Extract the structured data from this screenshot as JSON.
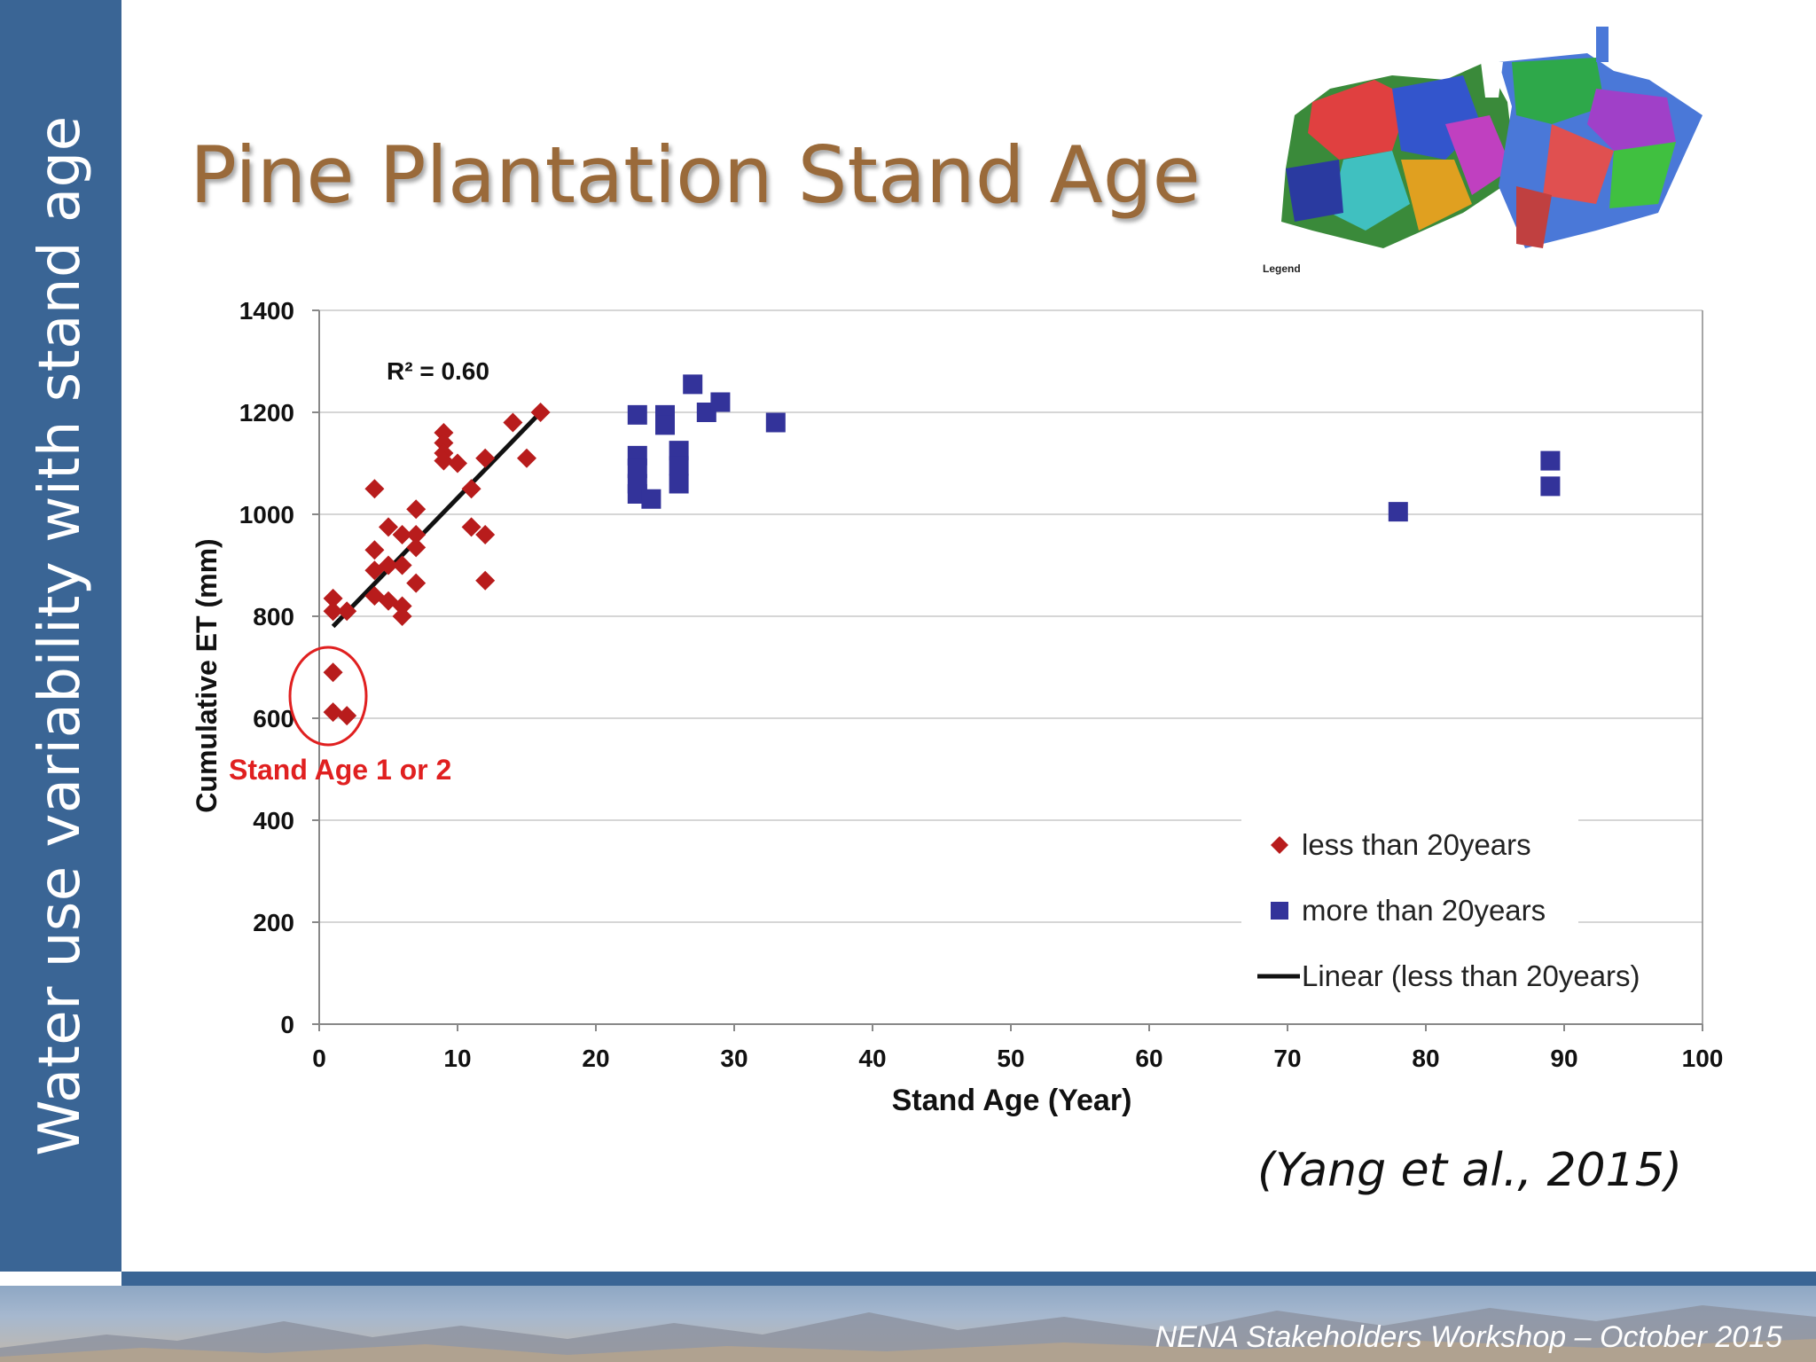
{
  "slide": {
    "sidebar_text": "Water use variability with stand age",
    "title": "Pine Plantation Stand Age",
    "citation": "(Yang et al., 2015)",
    "footer": "NENA Stakeholders Workshop – October 2015",
    "map_legend": "Legend"
  },
  "colors": {
    "sidebar": "#3a6595",
    "title": "#9a6a3a",
    "series_less": "#b81c1c",
    "series_more": "#33339a",
    "annotation": "#e02020"
  },
  "chart_data": {
    "type": "scatter",
    "xlabel": "Stand Age (Year)",
    "ylabel": "Cumulative ET (mm)",
    "xlim": [
      0,
      100
    ],
    "ylim": [
      0,
      1400
    ],
    "x_ticks": [
      0,
      10,
      20,
      30,
      40,
      50,
      60,
      70,
      80,
      90,
      100
    ],
    "y_ticks": [
      0,
      200,
      400,
      600,
      800,
      1000,
      1200,
      1400
    ],
    "grid": "horizontal",
    "legend_position": "bottom-right",
    "r2_label": "R² = 0.60",
    "annotation": "Stand Age 1 or 2",
    "series": [
      {
        "name": "less than 20years",
        "marker": "diamond",
        "points": [
          [
            1,
            835
          ],
          [
            1,
            810
          ],
          [
            2,
            810
          ],
          [
            1,
            690
          ],
          [
            1,
            612
          ],
          [
            2,
            605
          ],
          [
            4,
            1050
          ],
          [
            4,
            930
          ],
          [
            4,
            890
          ],
          [
            4,
            840
          ],
          [
            5,
            975
          ],
          [
            5,
            900
          ],
          [
            5,
            830
          ],
          [
            6,
            960
          ],
          [
            6,
            900
          ],
          [
            6,
            820
          ],
          [
            6,
            800
          ],
          [
            7,
            1010
          ],
          [
            7,
            960
          ],
          [
            7,
            935
          ],
          [
            7,
            865
          ],
          [
            9,
            1160
          ],
          [
            9,
            1140
          ],
          [
            9,
            1120
          ],
          [
            9,
            1105
          ],
          [
            10,
            1100
          ],
          [
            11,
            1050
          ],
          [
            11,
            975
          ],
          [
            12,
            1110
          ],
          [
            12,
            960
          ],
          [
            12,
            870
          ],
          [
            14,
            1180
          ],
          [
            15,
            1110
          ],
          [
            16,
            1200
          ]
        ]
      },
      {
        "name": "more than 20years",
        "marker": "square",
        "points": [
          [
            23,
            1195
          ],
          [
            23,
            1115
          ],
          [
            23,
            1090
          ],
          [
            23,
            1060
          ],
          [
            23,
            1040
          ],
          [
            24,
            1030
          ],
          [
            25,
            1195
          ],
          [
            25,
            1175
          ],
          [
            26,
            1125
          ],
          [
            26,
            1095
          ],
          [
            26,
            1060
          ],
          [
            27,
            1255
          ],
          [
            28,
            1200
          ],
          [
            29,
            1220
          ],
          [
            33,
            1180
          ],
          [
            78,
            1005
          ],
          [
            89,
            1105
          ],
          [
            89,
            1055
          ]
        ]
      }
    ],
    "trendline": {
      "name": "Linear (less than 20years)",
      "from": [
        1,
        780
      ],
      "to": [
        16,
        1200
      ]
    }
  }
}
